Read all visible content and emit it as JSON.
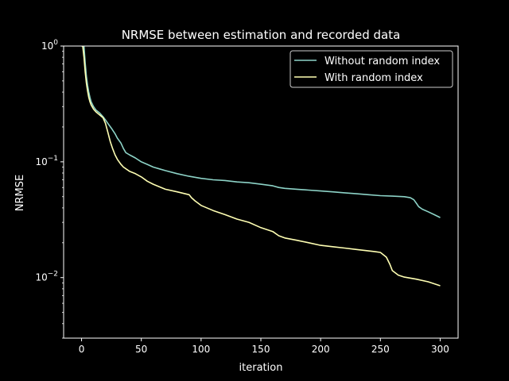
{
  "chart_data": {
    "type": "line",
    "title": "NRMSE between estimation and recorded data",
    "xlabel": "iteration",
    "ylabel": "NRMSE",
    "xlim": [
      -15,
      315
    ],
    "ylim": [
      0.003,
      1
    ],
    "yscale": "log",
    "x_ticks": [
      0,
      50,
      100,
      150,
      200,
      250,
      300
    ],
    "y_ticks": [
      {
        "value": 1,
        "label": "10^0"
      },
      {
        "value": 0.1,
        "label": "10^-1"
      },
      {
        "value": 0.01,
        "label": "10^-2"
      }
    ],
    "legend_position": "top-right",
    "grid": false,
    "series": [
      {
        "name": "Without random index",
        "color": "#8dd3c7",
        "x": [
          0,
          1,
          2,
          3,
          4,
          5,
          6,
          7,
          8,
          10,
          12,
          15,
          18,
          20,
          22,
          25,
          28,
          30,
          33,
          35,
          36,
          37,
          40,
          45,
          50,
          55,
          60,
          65,
          70,
          80,
          90,
          100,
          110,
          120,
          130,
          140,
          150,
          160,
          165,
          170,
          180,
          190,
          200,
          210,
          220,
          230,
          240,
          250,
          260,
          270,
          275,
          278,
          280,
          282,
          285,
          290,
          295,
          300
        ],
        "y": [
          1.0,
          1.0,
          1.0,
          0.72,
          0.55,
          0.46,
          0.4,
          0.36,
          0.33,
          0.3,
          0.28,
          0.265,
          0.245,
          0.23,
          0.215,
          0.195,
          0.175,
          0.16,
          0.145,
          0.13,
          0.125,
          0.12,
          0.115,
          0.108,
          0.1,
          0.095,
          0.09,
          0.087,
          0.084,
          0.079,
          0.075,
          0.072,
          0.07,
          0.069,
          0.067,
          0.066,
          0.064,
          0.062,
          0.06,
          0.059,
          0.058,
          0.057,
          0.056,
          0.055,
          0.054,
          0.053,
          0.052,
          0.051,
          0.0505,
          0.05,
          0.049,
          0.047,
          0.044,
          0.041,
          0.039,
          0.037,
          0.035,
          0.033
        ]
      },
      {
        "name": "With random index",
        "color": "#ffffb3",
        "x": [
          0,
          1,
          2,
          3,
          4,
          5,
          6,
          7,
          8,
          10,
          12,
          15,
          18,
          20,
          22,
          24,
          26,
          28,
          30,
          33,
          35,
          40,
          45,
          50,
          55,
          60,
          65,
          70,
          80,
          90,
          92,
          95,
          100,
          110,
          120,
          130,
          140,
          150,
          160,
          165,
          170,
          180,
          190,
          200,
          210,
          220,
          230,
          240,
          245,
          250,
          255,
          258,
          260,
          265,
          270,
          280,
          290,
          300
        ],
        "y": [
          1.0,
          1.0,
          0.8,
          0.6,
          0.48,
          0.41,
          0.36,
          0.33,
          0.31,
          0.285,
          0.27,
          0.255,
          0.24,
          0.215,
          0.18,
          0.15,
          0.13,
          0.115,
          0.105,
          0.095,
          0.09,
          0.083,
          0.079,
          0.074,
          0.068,
          0.064,
          0.061,
          0.058,
          0.055,
          0.052,
          0.049,
          0.046,
          0.042,
          0.038,
          0.035,
          0.032,
          0.03,
          0.027,
          0.025,
          0.023,
          0.022,
          0.021,
          0.02,
          0.019,
          0.0185,
          0.018,
          0.0175,
          0.017,
          0.0168,
          0.0165,
          0.015,
          0.013,
          0.0115,
          0.0105,
          0.0101,
          0.0097,
          0.0092,
          0.0085
        ]
      }
    ]
  }
}
